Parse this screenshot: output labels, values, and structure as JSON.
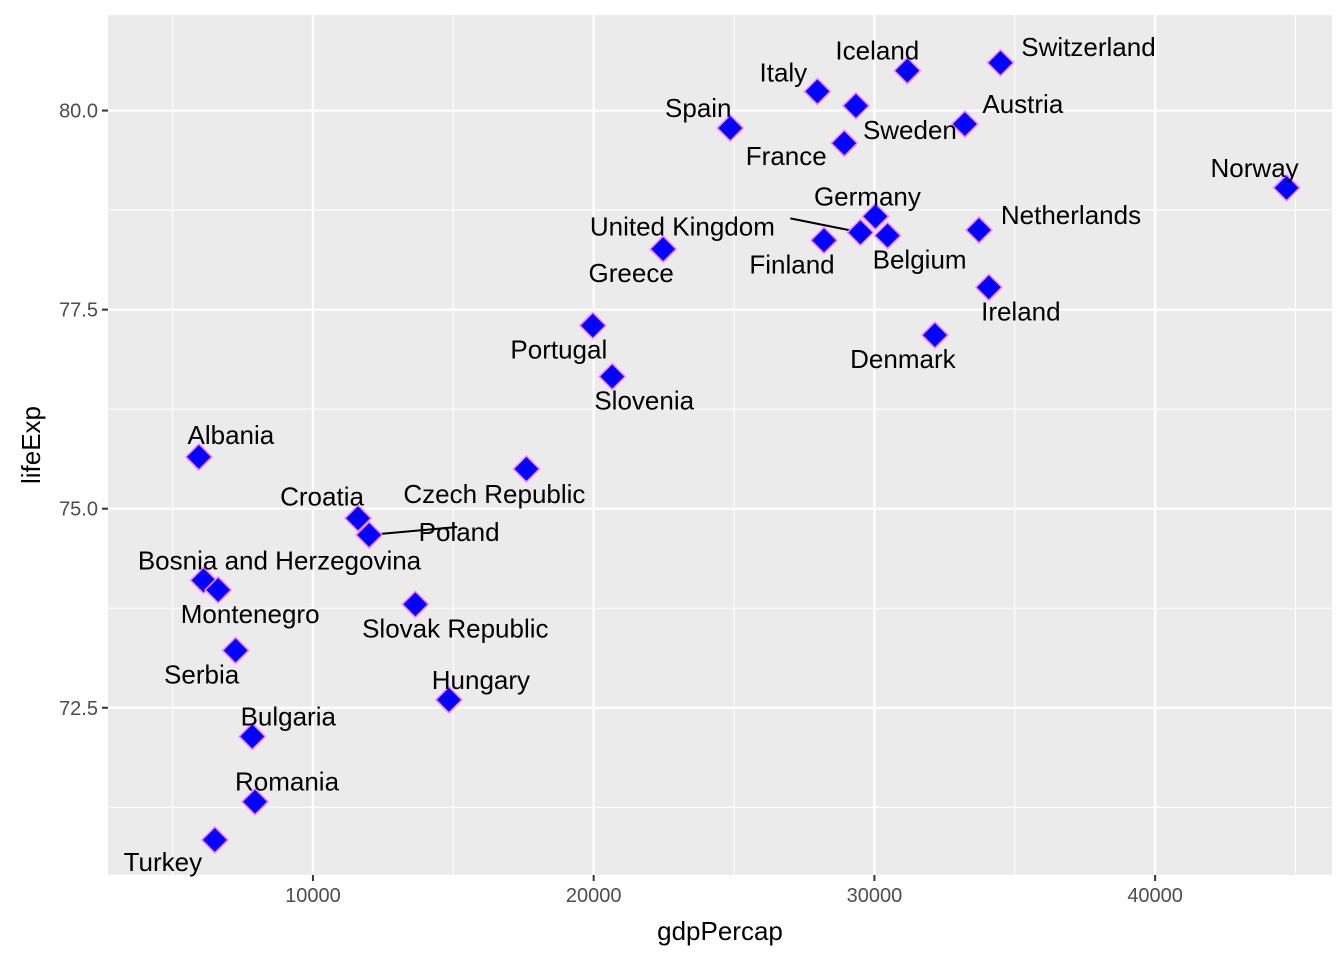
{
  "chart_data": {
    "type": "scatter",
    "xlabel": "gdpPercap",
    "ylabel": "lifeExp",
    "xlim": [
      2700,
      46300
    ],
    "ylim": [
      70.4,
      81.2
    ],
    "x_ticks": [
      10000,
      20000,
      30000,
      40000
    ],
    "y_ticks": [
      72.5,
      75.0,
      77.5,
      80.0
    ],
    "x_tick_labels": [
      "10000",
      "20000",
      "30000",
      "40000"
    ],
    "y_tick_labels": [
      "72.5",
      "75.0",
      "77.5",
      "80.0"
    ],
    "grid": true,
    "marker": "diamond",
    "colors": {
      "panel": "#ebebeb",
      "grid": "#ffffff",
      "marker_fill": "#0000ff",
      "marker_stroke": "#ff80ff",
      "text": "#000000",
      "tick_text": "#4d4d4d"
    },
    "points": [
      {
        "label": "Albania",
        "x": 5937,
        "y": 75.65
      },
      {
        "label": "Austria",
        "x": 33221,
        "y": 79.83
      },
      {
        "label": "Belgium",
        "x": 30470,
        "y": 78.43
      },
      {
        "label": "Bosnia and Herzegovina",
        "x": 6102,
        "y": 74.1
      },
      {
        "label": "Bulgaria",
        "x": 7839,
        "y": 72.14
      },
      {
        "label": "Croatia",
        "x": 11607,
        "y": 74.88
      },
      {
        "label": "Czech Republic",
        "x": 17604,
        "y": 75.5
      },
      {
        "label": "Denmark",
        "x": 32155,
        "y": 77.18
      },
      {
        "label": "Finland",
        "x": 28205,
        "y": 78.37
      },
      {
        "label": "France",
        "x": 28926,
        "y": 79.59
      },
      {
        "label": "Germany",
        "x": 30036,
        "y": 78.67
      },
      {
        "label": "Greece",
        "x": 22475,
        "y": 78.26
      },
      {
        "label": "Hungary",
        "x": 14843,
        "y": 72.6
      },
      {
        "label": "Iceland",
        "x": 31173,
        "y": 80.5
      },
      {
        "label": "Ireland",
        "x": 34077,
        "y": 77.78
      },
      {
        "label": "Italy",
        "x": 27968,
        "y": 80.24
      },
      {
        "label": "Montenegro",
        "x": 6624,
        "y": 73.98
      },
      {
        "label": "Netherlands",
        "x": 33725,
        "y": 78.5
      },
      {
        "label": "Norway",
        "x": 44683,
        "y": 79.03
      },
      {
        "label": "Poland",
        "x": 12002,
        "y": 74.67
      },
      {
        "label": "Portugal",
        "x": 19970,
        "y": 77.3
      },
      {
        "label": "Romania",
        "x": 7937,
        "y": 71.32
      },
      {
        "label": "Serbia",
        "x": 7246,
        "y": 73.22
      },
      {
        "label": "Slovak Republic",
        "x": 13647,
        "y": 73.8
      },
      {
        "label": "Slovenia",
        "x": 20660,
        "y": 76.66
      },
      {
        "label": "Spain",
        "x": 24866,
        "y": 79.78
      },
      {
        "label": "Sweden",
        "x": 29342,
        "y": 80.06
      },
      {
        "label": "Switzerland",
        "x": 34492,
        "y": 80.6
      },
      {
        "label": "Turkey",
        "x": 6506,
        "y": 70.84
      },
      {
        "label": "United Kingdom",
        "x": 29500,
        "y": 78.47
      }
    ]
  }
}
